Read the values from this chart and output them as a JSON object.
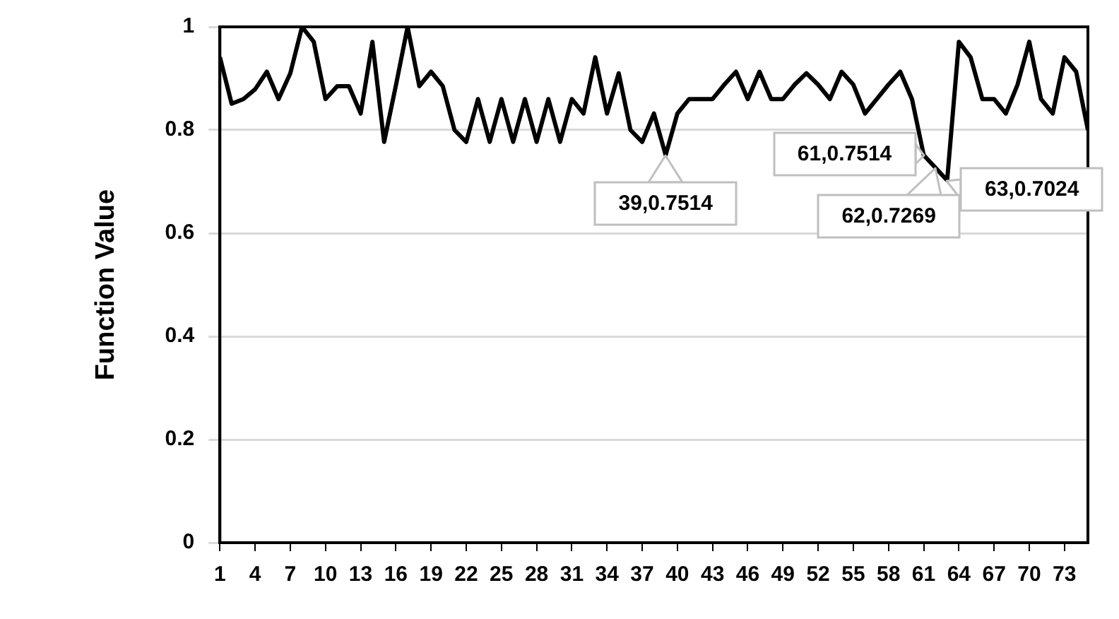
{
  "chart_data": {
    "type": "line",
    "ylabel": "Function Value",
    "x": [
      1,
      2,
      3,
      4,
      5,
      6,
      7,
      8,
      9,
      10,
      11,
      12,
      13,
      14,
      15,
      16,
      17,
      18,
      19,
      20,
      21,
      22,
      23,
      24,
      25,
      26,
      27,
      28,
      29,
      30,
      31,
      32,
      33,
      34,
      35,
      36,
      37,
      38,
      39,
      40,
      41,
      42,
      43,
      44,
      45,
      46,
      47,
      48,
      49,
      50,
      51,
      52,
      53,
      54,
      55,
      56,
      57,
      58,
      59,
      60,
      61,
      62,
      63,
      64,
      65,
      66,
      67,
      68,
      69,
      70,
      71,
      72,
      73,
      74,
      75
    ],
    "series": [
      {
        "color": "#000000",
        "values": [
          0.941,
          0.851,
          0.86,
          0.879,
          0.913,
          0.86,
          0.91,
          1.0,
          0.971,
          0.86,
          0.885,
          0.885,
          0.832,
          0.971,
          0.777,
          0.886,
          1.0,
          0.885,
          0.913,
          0.885,
          0.8,
          0.777,
          0.86,
          0.777,
          0.86,
          0.777,
          0.86,
          0.777,
          0.86,
          0.777,
          0.86,
          0.832,
          0.941,
          0.832,
          0.91,
          0.8,
          0.777,
          0.832,
          0.7514,
          0.832,
          0.86,
          0.86,
          0.86,
          0.888,
          0.913,
          0.86,
          0.913,
          0.86,
          0.86,
          0.888,
          0.91,
          0.888,
          0.86,
          0.913,
          0.888,
          0.832,
          0.86,
          0.888,
          0.913,
          0.86,
          0.7514,
          0.7269,
          0.7024,
          0.971,
          0.941,
          0.86,
          0.86,
          0.832,
          0.888,
          0.971,
          0.86,
          0.832,
          0.941,
          0.913,
          0.8
        ]
      }
    ],
    "xlim": [
      1,
      75
    ],
    "xticks": [
      1,
      4,
      7,
      10,
      13,
      16,
      19,
      22,
      25,
      28,
      31,
      34,
      37,
      40,
      43,
      46,
      49,
      52,
      55,
      58,
      61,
      64,
      67,
      70,
      73
    ],
    "ylim": [
      0,
      1
    ],
    "yticks": [
      0,
      0.2,
      0.4,
      0.6,
      0.8,
      1
    ],
    "grid": "y",
    "marker": "none",
    "line_style": "solid",
    "legend": false,
    "annotations": [
      {
        "text": "39,0.7514",
        "x": 39,
        "y": 0.7514
      },
      {
        "text": "61,0.7514",
        "x": 61,
        "y": 0.7514
      },
      {
        "text": "63,0.7024",
        "x": 63,
        "y": 0.7024
      },
      {
        "text": "62,0.7269",
        "x": 62,
        "y": 0.7269
      }
    ]
  }
}
